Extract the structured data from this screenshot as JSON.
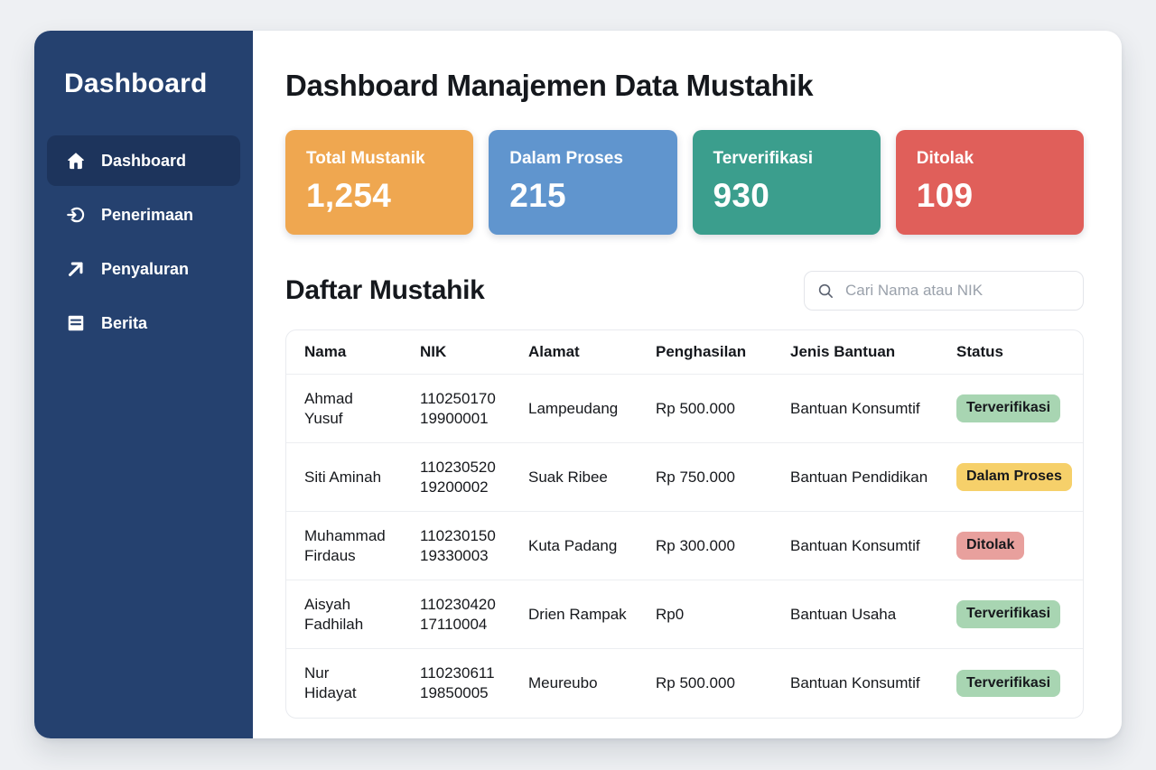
{
  "sidebar": {
    "title": "Dashboard",
    "items": [
      {
        "label": "Dashboard",
        "icon": "home-icon",
        "active": true
      },
      {
        "label": "Penerimaan",
        "icon": "receive-icon",
        "active": false
      },
      {
        "label": "Penyaluran",
        "icon": "distribute-icon",
        "active": false
      },
      {
        "label": "Berita",
        "icon": "news-icon",
        "active": false
      }
    ]
  },
  "header": {
    "title": "Dashboard Manajemen Data Mustahik"
  },
  "stats": [
    {
      "label": "Total Mustanik",
      "value": "1,254",
      "color": "#efa750"
    },
    {
      "label": "Dalam Proses",
      "value": "215",
      "color": "#6095ce"
    },
    {
      "label": "Terverifikasi",
      "value": "930",
      "color": "#3b9e8d"
    },
    {
      "label": "Ditolak",
      "value": "109",
      "color": "#e05f5a"
    }
  ],
  "list_section": {
    "title": "Daftar Mustahik",
    "search_placeholder": "Cari Nama atau NIK"
  },
  "table": {
    "columns": [
      "Nama",
      "NIK",
      "Alamat",
      "Penghasilan",
      "Jenis Bantuan",
      "Status"
    ],
    "status_colors": {
      "Terverifikasi": "#a8d5b2",
      "Dalam Proses": "#f6d06a",
      "Ditolak": "#e8a09d"
    },
    "rows": [
      {
        "nama": "Ahmad\nYusuf",
        "nik": "110250170\n19900001",
        "alamat": "Lampeudang",
        "penghasilan": "Rp 500.000",
        "jenis": "Bantuan Konsumtif",
        "status": "Terverifikasi"
      },
      {
        "nama": "Siti Aminah",
        "nik": "110230520\n19200002",
        "alamat": "Suak Ribee",
        "penghasilan": "Rp 750.000",
        "jenis": "Bantuan Pendidikan",
        "status": "Dalam Proses"
      },
      {
        "nama": "Muhammad\nFirdaus",
        "nik": "110230150\n19330003",
        "alamat": "Kuta Padang",
        "penghasilan": "Rp 300.000",
        "jenis": "Bantuan Konsumtif",
        "status": "Ditolak"
      },
      {
        "nama": "Aisyah\nFadhilah",
        "nik": "110230420\n17110004",
        "alamat": "Drien Rampak",
        "penghasilan": "Rp0",
        "jenis": "Bantuan Usaha",
        "status": "Terverifikasi"
      },
      {
        "nama": "Nur\nHidayat",
        "nik": "110230611\n19850005",
        "alamat": "Meureubo",
        "penghasilan": "Rp 500.000",
        "jenis": "Bantuan Konsumtif",
        "status": "Terverifikasi"
      }
    ]
  }
}
